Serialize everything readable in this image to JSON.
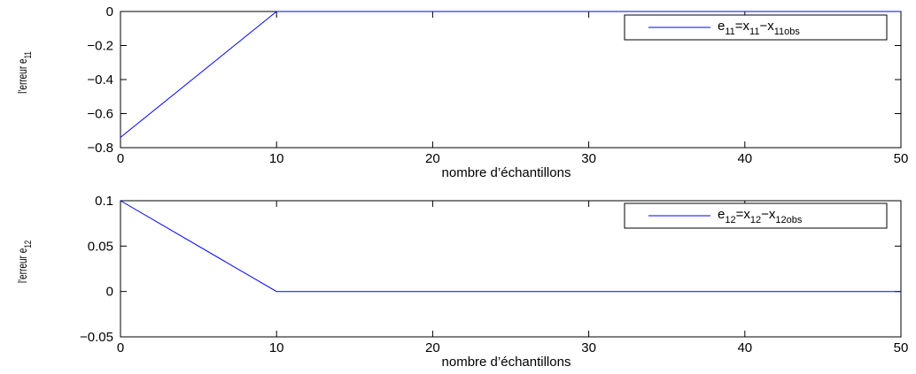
{
  "chart_data": [
    {
      "type": "line",
      "xlabel": "nombre d’échantillons",
      "ylabel": "l'erreur e",
      "ylabel_sub": "11",
      "xlim": [
        0,
        50
      ],
      "ylim": [
        -0.8,
        0
      ],
      "xticks": [
        0,
        10,
        20,
        30,
        40,
        50
      ],
      "yticks": [
        0,
        -0.2,
        -0.4,
        -0.6,
        -0.8
      ],
      "xtick_labels": [
        "0",
        "10",
        "20",
        "30",
        "40",
        "50"
      ],
      "ytick_labels": [
        "0",
        "−0.2",
        "−0.4",
        "−0.6",
        "−0.8"
      ],
      "grid": false,
      "legend": {
        "position": "top-right",
        "parts": [
          {
            "text": "e",
            "sub": false
          },
          {
            "text": "11",
            "sub": true
          },
          {
            "text": "=x",
            "sub": false
          },
          {
            "text": "11",
            "sub": true
          },
          {
            "text": "−x",
            "sub": false
          },
          {
            "text": "11obs",
            "sub": true
          }
        ]
      },
      "series": [
        {
          "color": "#0000ff",
          "x": [
            0,
            10,
            20,
            30,
            40,
            50
          ],
          "y": [
            -0.74,
            0,
            0,
            0,
            0,
            0
          ]
        }
      ]
    },
    {
      "type": "line",
      "xlabel": "nombre d’échantillons",
      "ylabel": "l'erreur e",
      "ylabel_sub": "12",
      "xlim": [
        0,
        50
      ],
      "ylim": [
        -0.05,
        0.1
      ],
      "xticks": [
        0,
        10,
        20,
        30,
        40,
        50
      ],
      "yticks": [
        0.1,
        0.05,
        0,
        -0.05
      ],
      "xtick_labels": [
        "0",
        "10",
        "20",
        "30",
        "40",
        "50"
      ],
      "ytick_labels": [
        "0.1",
        "0.05",
        "0",
        "−0.05"
      ],
      "grid": false,
      "legend": {
        "position": "top-right",
        "parts": [
          {
            "text": "e",
            "sub": false
          },
          {
            "text": "12",
            "sub": true
          },
          {
            "text": "=x",
            "sub": false
          },
          {
            "text": "12",
            "sub": true
          },
          {
            "text": "−x",
            "sub": false
          },
          {
            "text": "12obs",
            "sub": true
          }
        ]
      },
      "series": [
        {
          "color": "#0000ff",
          "x": [
            0,
            10,
            20,
            30,
            40,
            50
          ],
          "y": [
            0.1,
            0,
            0,
            0,
            0,
            0
          ]
        }
      ]
    }
  ]
}
